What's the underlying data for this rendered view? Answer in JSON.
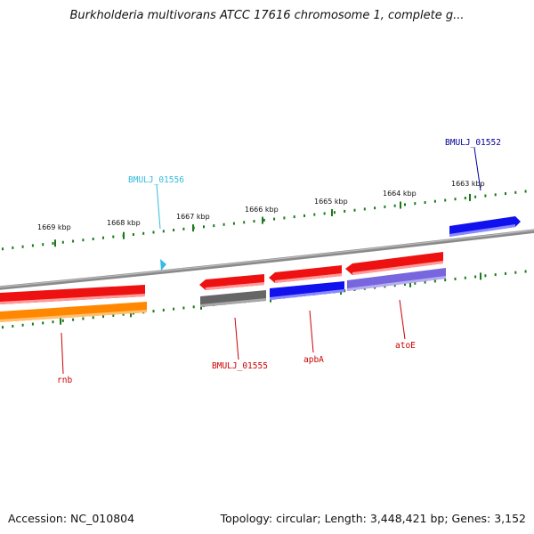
{
  "header": {
    "title": "Burkholderia multivorans ATCC 17616 chromosome 1, complete g..."
  },
  "footer": {
    "accession": "Accession: NC_010804",
    "summary": "Topology: circular; Length: 3,448,421 bp; Genes: 3,152"
  },
  "ruler": {
    "tick_labels": [
      "1669 kbp",
      "1668 kbp",
      "1667 kbp",
      "1666 kbp",
      "1665 kbp",
      "1664 kbp",
      "1663 kbp"
    ],
    "tick_color": "#1a7a1a"
  },
  "colors": {
    "backbone": "#8a8a8a",
    "forward_gene": "#ee1111",
    "reverse_gene": "#1111ee",
    "rnb_gene": "#ff8800",
    "gray_gene": "#666666",
    "lavender_gene": "#7766dd",
    "cyan_marker": "#33bbee",
    "label_red": "#cc0000",
    "label_blue": "#000099",
    "label_cyan": "#33bbdd"
  },
  "genes": {
    "rnb": "rnb",
    "bmulj_01555": "BMULJ_01555",
    "apba": "apbA",
    "atoe": "atoE",
    "bmulj_01556": "BMULJ_01556",
    "bmulj_01552": "BMULJ_01552"
  }
}
